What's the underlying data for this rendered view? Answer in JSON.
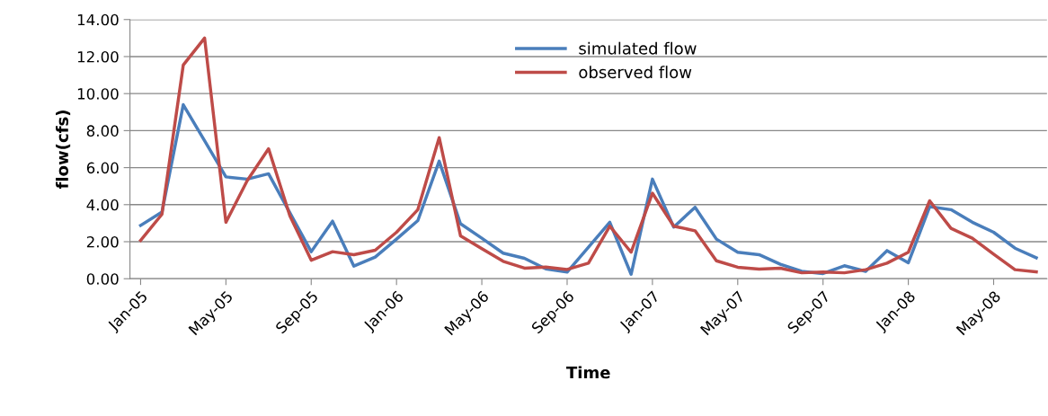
{
  "chart_data": {
    "type": "line",
    "xlabel": "Time",
    "ylabel": "flow(cfs)",
    "categories": [
      "Jan-05",
      null,
      null,
      null,
      "May-05",
      null,
      null,
      null,
      "Sep-05",
      null,
      null,
      null,
      "Jan-06",
      null,
      null,
      null,
      "May-06",
      null,
      null,
      null,
      "Sep-06",
      null,
      null,
      null,
      "Jan-07",
      null,
      null,
      null,
      "May-07",
      null,
      null,
      null,
      "Sep-07",
      null,
      null,
      null,
      "Jan-08",
      null,
      null,
      null,
      "May-08",
      null,
      null
    ],
    "series": [
      {
        "name": "simulated flow",
        "color": "#4a7ebb",
        "values": [
          2.88,
          3.6,
          9.4,
          7.45,
          5.5,
          5.38,
          5.67,
          3.56,
          1.46,
          3.11,
          0.68,
          1.17,
          2.14,
          3.14,
          6.35,
          2.97,
          2.19,
          1.38,
          1.1,
          0.53,
          0.36,
          1.7,
          3.05,
          0.24,
          5.38,
          2.79,
          3.86,
          2.14,
          1.43,
          1.3,
          0.78,
          0.4,
          0.28,
          0.7,
          0.4,
          1.52,
          0.86,
          3.89,
          3.73,
          3.05,
          2.51,
          1.65,
          1.13
        ]
      },
      {
        "name": "observed flow",
        "color": "#be4b48",
        "values": [
          2.07,
          3.48,
          11.54,
          13.0,
          3.05,
          5.3,
          7.02,
          3.4,
          1.0,
          1.46,
          1.3,
          1.54,
          2.51,
          3.73,
          7.62,
          2.32,
          1.62,
          0.94,
          0.57,
          0.63,
          0.5,
          0.84,
          2.84,
          1.43,
          4.62,
          2.84,
          2.59,
          0.97,
          0.62,
          0.52,
          0.57,
          0.32,
          0.36,
          0.32,
          0.49,
          0.84,
          1.43,
          4.21,
          2.72,
          2.19,
          1.33,
          0.49,
          0.37
        ]
      }
    ],
    "ylim": [
      0,
      14
    ],
    "yticks": [
      {
        "value": 0,
        "label": "0.00"
      },
      {
        "value": 2,
        "label": "2.00"
      },
      {
        "value": 4,
        "label": "4.00"
      },
      {
        "value": 6,
        "label": "6.00"
      },
      {
        "value": 8,
        "label": "8.00"
      },
      {
        "value": 10,
        "label": "10.00"
      },
      {
        "value": 12,
        "label": "12.00"
      },
      {
        "value": 14,
        "label": "14.00"
      }
    ],
    "grid": "y",
    "legend": "top",
    "marker": "none",
    "line_style": "solid"
  }
}
